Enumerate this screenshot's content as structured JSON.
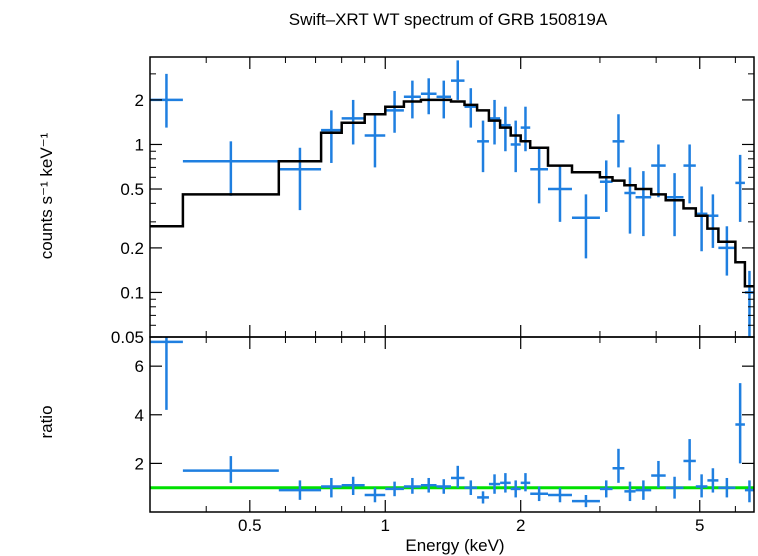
{
  "chart_data": {
    "type": "scatter",
    "title": "Swift–XRT WT spectrum of GRB 150819A",
    "xlabel": "Energy (keV)",
    "x_scale": "log",
    "xlim": [
      0.3,
      6.6
    ],
    "x_ticks": [
      {
        "v": 0.5,
        "label": "0.5"
      },
      {
        "v": 1,
        "label": "1"
      },
      {
        "v": 2,
        "label": "2"
      },
      {
        "v": 5,
        "label": "5"
      }
    ],
    "colors": {
      "data": "#1f7fe0",
      "model": "#000000",
      "unity": "#00e000",
      "frame": "#000000"
    },
    "grid": false,
    "panels": [
      {
        "id": "spectrum",
        "ylabel": "counts s⁻¹ keV⁻¹",
        "y_scale": "log",
        "ylim": [
          0.05,
          3.9
        ],
        "y_ticks": [
          {
            "v": 0.05,
            "label": "0.05"
          },
          {
            "v": 0.1,
            "label": "0.1"
          },
          {
            "v": 0.2,
            "label": "0.2"
          },
          {
            "v": 0.5,
            "label": "0.5"
          },
          {
            "v": 1,
            "label": "1"
          },
          {
            "v": 2,
            "label": "2"
          }
        ],
        "series": [
          {
            "kind": "errorbars",
            "points": [
              {
                "x0": 0.3,
                "x1": 0.355,
                "y": 2.0,
                "ylo": 1.3,
                "yhi": 3.0
              },
              {
                "x0": 0.355,
                "x1": 0.58,
                "y": 0.77,
                "ylo": 0.45,
                "yhi": 1.05
              },
              {
                "x0": 0.58,
                "x1": 0.72,
                "y": 0.68,
                "ylo": 0.36,
                "yhi": 0.95
              },
              {
                "x0": 0.72,
                "x1": 0.8,
                "y": 1.25,
                "ylo": 0.75,
                "yhi": 1.7
              },
              {
                "x0": 0.8,
                "x1": 0.9,
                "y": 1.5,
                "ylo": 1.0,
                "yhi": 2.0
              },
              {
                "x0": 0.9,
                "x1": 1.0,
                "y": 1.15,
                "ylo": 0.7,
                "yhi": 1.6
              },
              {
                "x0": 1.0,
                "x1": 1.1,
                "y": 1.7,
                "ylo": 1.2,
                "yhi": 2.3
              },
              {
                "x0": 1.1,
                "x1": 1.2,
                "y": 2.1,
                "ylo": 1.5,
                "yhi": 2.7
              },
              {
                "x0": 1.2,
                "x1": 1.3,
                "y": 2.2,
                "ylo": 1.6,
                "yhi": 2.8
              },
              {
                "x0": 1.3,
                "x1": 1.4,
                "y": 2.1,
                "ylo": 1.5,
                "yhi": 2.7
              },
              {
                "x0": 1.4,
                "x1": 1.5,
                "y": 2.7,
                "ylo": 2.0,
                "yhi": 3.7
              },
              {
                "x0": 1.5,
                "x1": 1.6,
                "y": 1.8,
                "ylo": 1.3,
                "yhi": 2.4
              },
              {
                "x0": 1.6,
                "x1": 1.7,
                "y": 1.05,
                "ylo": 0.65,
                "yhi": 1.45
              },
              {
                "x0": 1.7,
                "x1": 1.8,
                "y": 1.5,
                "ylo": 1.0,
                "yhi": 2.0
              },
              {
                "x0": 1.8,
                "x1": 1.9,
                "y": 1.35,
                "ylo": 0.9,
                "yhi": 1.8
              },
              {
                "x0": 1.9,
                "x1": 2.0,
                "y": 1.0,
                "ylo": 0.65,
                "yhi": 1.45
              },
              {
                "x0": 2.0,
                "x1": 2.1,
                "y": 1.3,
                "ylo": 0.9,
                "yhi": 1.8
              },
              {
                "x0": 2.1,
                "x1": 2.3,
                "y": 0.68,
                "ylo": 0.4,
                "yhi": 0.95
              },
              {
                "x0": 2.3,
                "x1": 2.6,
                "y": 0.5,
                "ylo": 0.3,
                "yhi": 0.72
              },
              {
                "x0": 2.6,
                "x1": 3.0,
                "y": 0.32,
                "ylo": 0.17,
                "yhi": 0.46
              },
              {
                "x0": 3.0,
                "x1": 3.2,
                "y": 0.56,
                "ylo": 0.35,
                "yhi": 0.78
              },
              {
                "x0": 3.2,
                "x1": 3.4,
                "y": 1.05,
                "ylo": 0.7,
                "yhi": 1.6
              },
              {
                "x0": 3.4,
                "x1": 3.6,
                "y": 0.47,
                "ylo": 0.25,
                "yhi": 0.7
              },
              {
                "x0": 3.6,
                "x1": 3.9,
                "y": 0.44,
                "ylo": 0.24,
                "yhi": 0.66
              },
              {
                "x0": 3.9,
                "x1": 4.2,
                "y": 0.72,
                "ylo": 0.44,
                "yhi": 1.0
              },
              {
                "x0": 4.2,
                "x1": 4.6,
                "y": 0.44,
                "ylo": 0.24,
                "yhi": 0.64
              },
              {
                "x0": 4.6,
                "x1": 4.9,
                "y": 0.72,
                "ylo": 0.4,
                "yhi": 1.0
              },
              {
                "x0": 4.9,
                "x1": 5.2,
                "y": 0.34,
                "ylo": 0.19,
                "yhi": 0.52
              },
              {
                "x0": 5.2,
                "x1": 5.5,
                "y": 0.33,
                "ylo": 0.2,
                "yhi": 0.46
              },
              {
                "x0": 5.5,
                "x1": 6.0,
                "y": 0.2,
                "ylo": 0.13,
                "yhi": 0.28
              },
              {
                "x0": 6.0,
                "x1": 6.3,
                "y": 0.55,
                "ylo": 0.3,
                "yhi": 0.85
              },
              {
                "x0": 6.3,
                "x1": 6.6,
                "y": 0.1,
                "ylo": 0.05,
                "yhi": 0.14
              }
            ]
          },
          {
            "kind": "step",
            "edges": [
              0.3,
              0.355,
              0.58,
              0.72,
              0.8,
              0.9,
              1.0,
              1.1,
              1.2,
              1.3,
              1.4,
              1.5,
              1.6,
              1.7,
              1.8,
              1.9,
              2.0,
              2.1,
              2.3,
              2.6,
              3.0,
              3.2,
              3.4,
              3.6,
              3.9,
              4.2,
              4.6,
              4.9,
              5.2,
              5.5,
              6.0,
              6.3,
              6.6
            ],
            "values": [
              0.28,
              0.46,
              0.77,
              1.2,
              1.4,
              1.6,
              1.8,
              1.95,
              2.0,
              2.0,
              1.95,
              1.85,
              1.7,
              1.45,
              1.3,
              1.15,
              1.05,
              0.95,
              0.72,
              0.65,
              0.6,
              0.57,
              0.53,
              0.5,
              0.46,
              0.42,
              0.37,
              0.33,
              0.27,
              0.22,
              0.16,
              0.11
            ]
          }
        ]
      },
      {
        "id": "ratio",
        "ylabel": "ratio",
        "y_scale": "linear",
        "ylim": [
          0,
          7.2
        ],
        "y_ticks": [
          {
            "v": 2,
            "label": "2"
          },
          {
            "v": 4,
            "label": "4"
          },
          {
            "v": 6,
            "label": "6"
          }
        ],
        "unity": 1,
        "series": [
          {
            "kind": "errorbars",
            "points": [
              {
                "x0": 0.3,
                "x1": 0.355,
                "y": 7.0,
                "ylo": 4.2,
                "yhi": 7.2
              },
              {
                "x0": 0.355,
                "x1": 0.58,
                "y": 1.7,
                "ylo": 1.2,
                "yhi": 2.3
              },
              {
                "x0": 0.58,
                "x1": 0.72,
                "y": 0.9,
                "ylo": 0.5,
                "yhi": 1.3
              },
              {
                "x0": 0.72,
                "x1": 0.8,
                "y": 1.05,
                "ylo": 0.6,
                "yhi": 1.4
              },
              {
                "x0": 0.8,
                "x1": 0.9,
                "y": 1.1,
                "ylo": 0.7,
                "yhi": 1.45
              },
              {
                "x0": 0.9,
                "x1": 1.0,
                "y": 0.7,
                "ylo": 0.4,
                "yhi": 1.0
              },
              {
                "x0": 1.0,
                "x1": 1.1,
                "y": 0.95,
                "ylo": 0.65,
                "yhi": 1.25
              },
              {
                "x0": 1.1,
                "x1": 1.2,
                "y": 1.05,
                "ylo": 0.75,
                "yhi": 1.4
              },
              {
                "x0": 1.2,
                "x1": 1.3,
                "y": 1.1,
                "ylo": 0.8,
                "yhi": 1.4
              },
              {
                "x0": 1.3,
                "x1": 1.4,
                "y": 1.05,
                "ylo": 0.75,
                "yhi": 1.35
              },
              {
                "x0": 1.4,
                "x1": 1.5,
                "y": 1.4,
                "ylo": 1.0,
                "yhi": 1.9
              },
              {
                "x0": 1.5,
                "x1": 1.6,
                "y": 1.0,
                "ylo": 0.7,
                "yhi": 1.3
              },
              {
                "x0": 1.6,
                "x1": 1.7,
                "y": 0.6,
                "ylo": 0.35,
                "yhi": 0.85
              },
              {
                "x0": 1.7,
                "x1": 1.8,
                "y": 1.15,
                "ylo": 0.75,
                "yhi": 1.55
              },
              {
                "x0": 1.8,
                "x1": 1.9,
                "y": 1.2,
                "ylo": 0.8,
                "yhi": 1.6
              },
              {
                "x0": 1.9,
                "x1": 2.0,
                "y": 0.95,
                "ylo": 0.6,
                "yhi": 1.3
              },
              {
                "x0": 2.0,
                "x1": 2.1,
                "y": 1.2,
                "ylo": 0.85,
                "yhi": 1.6
              },
              {
                "x0": 2.1,
                "x1": 2.3,
                "y": 0.75,
                "ylo": 0.45,
                "yhi": 1.05
              },
              {
                "x0": 2.3,
                "x1": 2.6,
                "y": 0.7,
                "ylo": 0.4,
                "yhi": 1.0
              },
              {
                "x0": 2.6,
                "x1": 3.0,
                "y": 0.45,
                "ylo": 0.2,
                "yhi": 0.7
              },
              {
                "x0": 3.0,
                "x1": 3.2,
                "y": 0.95,
                "ylo": 0.6,
                "yhi": 1.3
              },
              {
                "x0": 3.2,
                "x1": 3.4,
                "y": 1.8,
                "ylo": 1.2,
                "yhi": 2.6
              },
              {
                "x0": 3.4,
                "x1": 3.6,
                "y": 0.85,
                "ylo": 0.45,
                "yhi": 1.25
              },
              {
                "x0": 3.6,
                "x1": 3.9,
                "y": 0.9,
                "ylo": 0.5,
                "yhi": 1.3
              },
              {
                "x0": 3.9,
                "x1": 4.2,
                "y": 1.5,
                "ylo": 1.0,
                "yhi": 2.1
              },
              {
                "x0": 4.2,
                "x1": 4.6,
                "y": 1.0,
                "ylo": 0.55,
                "yhi": 1.45
              },
              {
                "x0": 4.6,
                "x1": 4.9,
                "y": 2.1,
                "ylo": 1.3,
                "yhi": 3.0
              },
              {
                "x0": 4.9,
                "x1": 5.2,
                "y": 1.05,
                "ylo": 0.6,
                "yhi": 1.55
              },
              {
                "x0": 5.2,
                "x1": 5.5,
                "y": 1.3,
                "ylo": 0.8,
                "yhi": 1.8
              },
              {
                "x0": 5.5,
                "x1": 6.0,
                "y": 1.0,
                "ylo": 0.6,
                "yhi": 1.4
              },
              {
                "x0": 6.0,
                "x1": 6.3,
                "y": 3.6,
                "ylo": 2.0,
                "yhi": 5.3
              },
              {
                "x0": 6.3,
                "x1": 6.6,
                "y": 0.9,
                "ylo": 0.4,
                "yhi": 1.3
              }
            ]
          }
        ]
      }
    ]
  }
}
